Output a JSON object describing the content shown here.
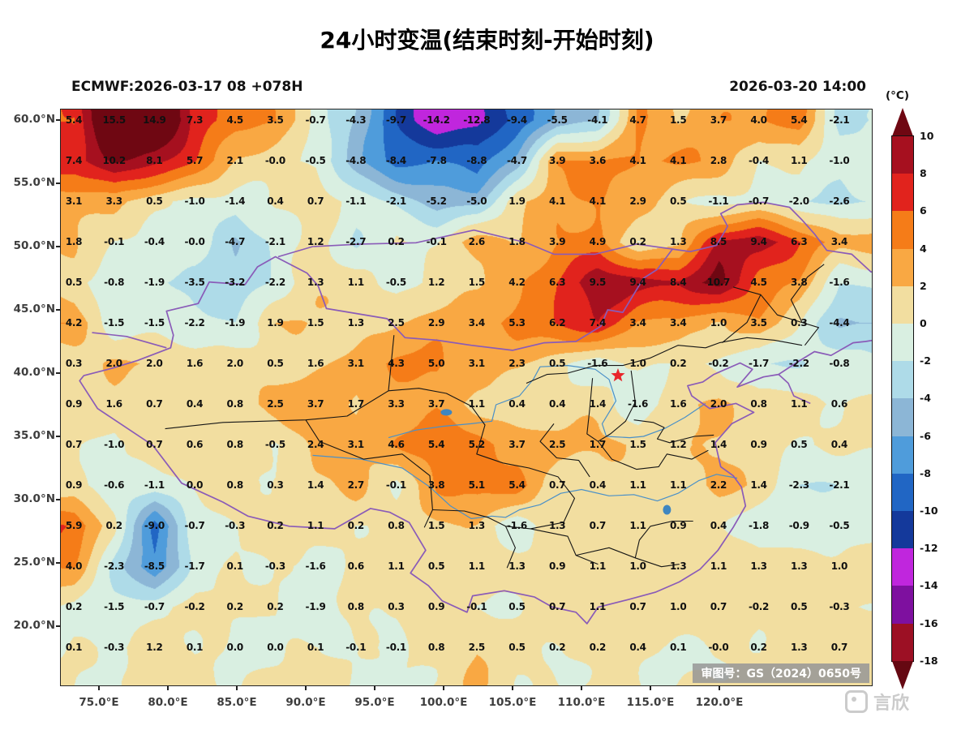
{
  "title": "24小时变温(结束时刻-开始时刻)",
  "header": {
    "model_run": "ECMWF:2026-03-17 08 +078H",
    "valid_time": "2026-03-20 14:00"
  },
  "axes": {
    "lat_labels": [
      "60.0°N",
      "55.0°N",
      "50.0°N",
      "45.0°N",
      "40.0°N",
      "35.0°N",
      "30.0°N",
      "25.0°N",
      "20.0°N"
    ],
    "lon_labels": [
      "75.0°E",
      "80.0°E",
      "85.0°E",
      "90.0°E",
      "95.0°E",
      "100.0°E",
      "105.0°E",
      "110.0°E",
      "115.0°E",
      "120.0°E"
    ]
  },
  "colorbar": {
    "unit": "(°C)",
    "tick_labels": [
      "10",
      "8",
      "6",
      "4",
      "2",
      "0",
      "-2",
      "-4",
      "-6",
      "-8",
      "-10",
      "-12",
      "-14",
      "-16",
      "-18"
    ],
    "colors_top_to_bottom": [
      "#6f0712",
      "#a6101f",
      "#e1231d",
      "#f57c18",
      "#f9a843",
      "#f2dea0",
      "#d9efe1",
      "#aedbe8",
      "#8cb6d6",
      "#4f9cdb",
      "#2166c4",
      "#14399b",
      "#c026dd",
      "#7e109f",
      "#9c1024",
      "#650812"
    ]
  },
  "map_overlay": {
    "license_badge": "审图号：GS（2024）0650号",
    "watermark_text": "言欣"
  },
  "chart_data": {
    "type": "heatmap",
    "title": "24小时变温(结束时刻-开始时刻)",
    "units": "°C",
    "value_range_shown": [
      -18,
      10
    ],
    "grid_lons_deg_e": [
      73.2,
      76.1,
      79.0,
      82.0,
      84.9,
      87.8,
      90.7,
      93.6,
      96.6,
      99.5,
      102.4,
      105.3,
      108.2,
      111.2,
      114.1,
      117.0,
      119.9,
      122.8,
      125.8,
      128.7
    ],
    "grid_lats_deg_n": [
      60.0,
      56.8,
      53.6,
      50.4,
      47.2,
      44.0,
      40.8,
      37.6,
      34.4,
      31.2,
      28.0,
      24.8,
      21.6,
      18.4
    ],
    "values": [
      [
        "5.4",
        "15.5",
        "14.9",
        "7.3",
        "4.5",
        "3.5",
        "-0.7",
        "-4.3",
        "-9.7",
        "-14.2",
        "-12.8",
        "-9.4",
        "-5.5",
        "-4.1",
        "4.7",
        "1.5",
        "3.7",
        "4.0",
        "5.4",
        "-2.1"
      ],
      [
        "7.4",
        "10.2",
        "8.1",
        "5.7",
        "2.1",
        "-0.0",
        "-0.5",
        "-4.8",
        "-8.4",
        "-7.8",
        "-8.8",
        "-4.7",
        "3.9",
        "3.6",
        "4.1",
        "4.1",
        "2.8",
        "-0.4",
        "1.1",
        "-1.0"
      ],
      [
        "3.1",
        "3.3",
        "0.5",
        "-1.0",
        "-1.4",
        "0.4",
        "0.7",
        "-1.1",
        "-2.1",
        "-5.2",
        "-5.0",
        "1.9",
        "4.1",
        "4.1",
        "2.9",
        "0.5",
        "-1.1",
        "-0.7",
        "-2.0",
        "-2.6"
      ],
      [
        "1.8",
        "-0.1",
        "-0.4",
        "-0.0",
        "-4.7",
        "-2.1",
        "1.2",
        "-2.7",
        "0.2",
        "-0.1",
        "2.6",
        "1.8",
        "3.9",
        "4.9",
        "0.2",
        "1.3",
        "8.5",
        "9.4",
        "6.3",
        "3.4"
      ],
      [
        "0.5",
        "-0.8",
        "-1.9",
        "-3.5",
        "-3.2",
        "-2.2",
        "1.3",
        "1.1",
        "-0.5",
        "1.2",
        "1.5",
        "4.2",
        "6.3",
        "9.5",
        "9.4",
        "8.4",
        "10.7",
        "4.5",
        "3.8",
        "-1.6"
      ],
      [
        "4.2",
        "-1.5",
        "-1.5",
        "-2.2",
        "-1.9",
        "1.9",
        "1.5",
        "1.3",
        "2.5",
        "2.9",
        "3.4",
        "5.3",
        "6.2",
        "7.4",
        "3.4",
        "3.4",
        "1.0",
        "3.5",
        "0.3",
        "-4.4"
      ],
      [
        "0.3",
        "2.0",
        "2.0",
        "1.6",
        "2.0",
        "0.5",
        "1.6",
        "3.1",
        "4.3",
        "5.0",
        "3.1",
        "2.3",
        "0.5",
        "-1.6",
        "1.0",
        "0.2",
        "-0.2",
        "-1.7",
        "-2.2",
        "-0.8"
      ],
      [
        "0.9",
        "1.6",
        "0.7",
        "0.4",
        "0.8",
        "2.5",
        "3.7",
        "1.7",
        "3.3",
        "3.7",
        "1.1",
        "0.4",
        "0.4",
        "1.4",
        "-1.6",
        "1.6",
        "2.0",
        "0.8",
        "1.1",
        "0.6"
      ],
      [
        "0.7",
        "-1.0",
        "0.7",
        "0.6",
        "0.8",
        "-0.5",
        "2.4",
        "3.1",
        "4.6",
        "5.4",
        "5.2",
        "3.7",
        "2.5",
        "1.7",
        "1.5",
        "1.2",
        "1.4",
        "0.9",
        "0.5",
        "0.4"
      ],
      [
        "0.9",
        "-0.6",
        "-1.1",
        "0.0",
        "0.8",
        "0.3",
        "1.4",
        "2.7",
        "-0.1",
        "3.8",
        "5.1",
        "5.4",
        "0.7",
        "0.4",
        "1.1",
        "1.1",
        "2.2",
        "1.4",
        "-2.3",
        "-2.1"
      ],
      [
        "5.9",
        "0.2",
        "-9.0",
        "-0.7",
        "-0.3",
        "0.2",
        "1.1",
        "0.2",
        "0.8",
        "1.5",
        "1.3",
        "-1.6",
        "1.3",
        "0.7",
        "1.1",
        "0.9",
        "0.4",
        "-1.8",
        "-0.9",
        "-0.5"
      ],
      [
        "4.0",
        "-2.3",
        "-8.5",
        "-1.7",
        "0.1",
        "-0.3",
        "-1.6",
        "0.6",
        "1.1",
        "0.5",
        "1.1",
        "1.3",
        "0.9",
        "1.1",
        "1.0",
        "1.3",
        "1.1",
        "1.3",
        "1.3",
        "1.0"
      ],
      [
        "0.2",
        "-1.5",
        "-0.7",
        "-0.2",
        "0.2",
        "0.2",
        "-1.9",
        "0.8",
        "0.3",
        "0.9",
        "-0.1",
        "0.5",
        "0.7",
        "1.1",
        "0.7",
        "1.0",
        "0.7",
        "-0.2",
        "0.5",
        "-0.3"
      ],
      [
        "0.1",
        "-0.3",
        "1.2",
        "0.1",
        "0.0",
        "0.0",
        "0.1",
        "-0.1",
        "-0.1",
        "0.8",
        "2.5",
        "0.5",
        "0.2",
        "0.2",
        "0.4",
        "0.1",
        "-0.0",
        "0.2",
        "1.3",
        "0.7"
      ]
    ]
  }
}
